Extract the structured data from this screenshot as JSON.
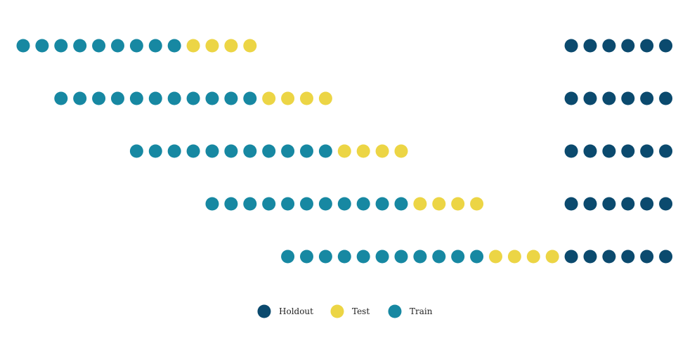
{
  "colors": {
    "holdout": "#0b4a6e",
    "test": "#ecd545",
    "train": "#1788a2"
  },
  "chart_data": {
    "type": "scatter",
    "description_of_rows": "each row is one cross-validation fold; dots are time steps",
    "rows": [
      {
        "train": [
          1,
          9
        ],
        "test": [
          10,
          13
        ],
        "holdout": [
          30,
          35
        ]
      },
      {
        "train": [
          3,
          13
        ],
        "test": [
          14,
          17
        ],
        "holdout": [
          30,
          35
        ]
      },
      {
        "train": [
          7,
          17
        ],
        "test": [
          18,
          21
        ],
        "holdout": [
          30,
          35
        ]
      },
      {
        "train": [
          11,
          21
        ],
        "test": [
          22,
          25
        ],
        "holdout": [
          30,
          35
        ]
      },
      {
        "train": [
          15,
          25
        ],
        "test": [
          26,
          29
        ],
        "holdout": [
          30,
          35
        ]
      }
    ],
    "legend": {
      "items": [
        {
          "key": "holdout",
          "label": "Holdout"
        },
        {
          "key": "test",
          "label": "Test"
        },
        {
          "key": "train",
          "label": "Train"
        }
      ]
    }
  }
}
